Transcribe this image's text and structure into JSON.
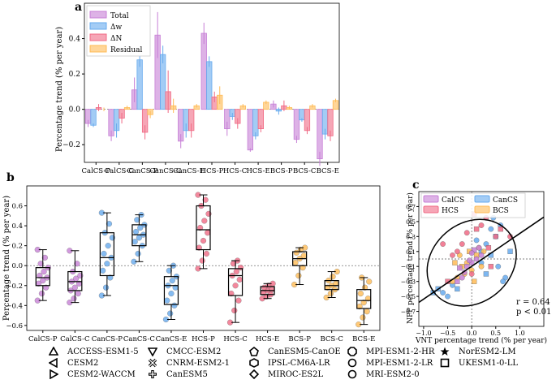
{
  "panel_labels": {
    "a": "a",
    "b": "b",
    "c": "c"
  },
  "colors": {
    "total": "#c77fd6",
    "dw": "#66aaee",
    "dn": "#f06a85",
    "res": "#ffbb55",
    "calcs": "#c77fd6",
    "cancs": "#66aaee",
    "hcs": "#f06a85",
    "bcs": "#ffbb55"
  },
  "chart_data": [
    {
      "id": "a",
      "type": "bar",
      "ylabel": "Percentage trend (% per year)",
      "ylim": [
        -0.3,
        0.6
      ],
      "yticks": [
        -0.2,
        0.0,
        0.2,
        0.4
      ],
      "ytick_labels": [
        "−0.2",
        "0.0",
        "0.2",
        "0.4"
      ],
      "categories": [
        "CalCS-P",
        "CalCS-C",
        "CanCS-P",
        "CanCS-C",
        "CanCS-E",
        "HCS-P",
        "HCS-C",
        "HCS-E",
        "BCS-P",
        "BCS-C",
        "BCS-E"
      ],
      "series": [
        {
          "name": "Total",
          "key": "total",
          "values": [
            -0.08,
            -0.15,
            0.11,
            0.42,
            -0.18,
            0.43,
            -0.11,
            -0.23,
            0.03,
            -0.17,
            -0.28
          ],
          "errors": [
            0.02,
            0.03,
            0.07,
            0.13,
            0.04,
            0.06,
            0.04,
            0.01,
            0.02,
            0.02,
            0.04
          ]
        },
        {
          "name": "Δw",
          "key": "dw",
          "values": [
            -0.09,
            -0.12,
            0.28,
            0.31,
            -0.12,
            0.27,
            -0.04,
            -0.15,
            -0.01,
            -0.06,
            -0.14
          ],
          "errors": [
            0.01,
            0.04,
            0.04,
            0.05,
            0.04,
            0.03,
            0.02,
            0.02,
            0.02,
            0.01,
            0.03
          ]
        },
        {
          "name": "ΔN",
          "key": "dn",
          "values": [
            0.01,
            -0.05,
            -0.13,
            0.1,
            -0.12,
            0.07,
            -0.08,
            -0.11,
            0.02,
            -0.12,
            -0.15
          ],
          "errors": [
            0.02,
            0.03,
            0.04,
            0.12,
            0.04,
            0.03,
            0.03,
            0.02,
            0.03,
            0.02,
            0.03
          ]
        },
        {
          "name": "Residual",
          "key": "res",
          "values": [
            0.0,
            0.01,
            -0.03,
            0.02,
            0.02,
            0.08,
            0.02,
            0.04,
            0.01,
            0.02,
            0.05
          ],
          "errors": [
            0.01,
            0.01,
            0.02,
            0.04,
            0.01,
            0.05,
            0.01,
            0.01,
            0.01,
            0.01,
            0.01
          ]
        }
      ]
    },
    {
      "id": "b",
      "type": "box",
      "ylabel": "Percentage trend (% per year)",
      "ylim": [
        -0.65,
        0.8
      ],
      "yticks": [
        -0.6,
        -0.4,
        -0.2,
        0.0,
        0.2,
        0.4,
        0.6
      ],
      "ytick_labels": [
        "−0.6",
        "−0.4",
        "−0.2",
        "0.0",
        "0.2",
        "0.4",
        "0.6"
      ],
      "categories": [
        "CalCS-P",
        "CalCS-C",
        "CanCS-P",
        "CanCS-C",
        "CanCS-E",
        "HCS-P",
        "HCS-C",
        "HCS-E",
        "BCS-P",
        "BCS-C",
        "BCS-E"
      ],
      "group_color": [
        "calcs",
        "calcs",
        "cancs",
        "cancs",
        "cancs",
        "hcs",
        "hcs",
        "hcs",
        "bcs",
        "bcs",
        "bcs"
      ],
      "boxes": [
        {
          "min": -0.35,
          "q1": -0.2,
          "median": -0.12,
          "q3": -0.02,
          "max": 0.16
        },
        {
          "min": -0.37,
          "q1": -0.25,
          "median": -0.16,
          "q3": -0.06,
          "max": 0.15
        },
        {
          "min": -0.3,
          "q1": -0.1,
          "median": 0.08,
          "q3": 0.33,
          "max": 0.53
        },
        {
          "min": 0.04,
          "q1": 0.2,
          "median": 0.31,
          "q3": 0.41,
          "max": 0.51
        },
        {
          "min": -0.54,
          "q1": -0.39,
          "median": -0.2,
          "q3": -0.11,
          "max": 0.0
        },
        {
          "min": -0.03,
          "q1": 0.16,
          "median": 0.36,
          "q3": 0.6,
          "max": 0.71
        },
        {
          "min": -0.57,
          "q1": -0.3,
          "median": -0.1,
          "q3": -0.03,
          "max": 0.05
        },
        {
          "min": -0.33,
          "q1": -0.29,
          "median": -0.25,
          "q3": -0.21,
          "max": -0.18
        },
        {
          "min": -0.19,
          "q1": 0.0,
          "median": 0.07,
          "q3": 0.14,
          "max": 0.18
        },
        {
          "min": -0.32,
          "q1": -0.24,
          "median": -0.2,
          "q3": -0.15,
          "max": -0.06
        },
        {
          "min": -0.59,
          "q1": -0.43,
          "median": -0.35,
          "q3": -0.24,
          "max": -0.12
        }
      ],
      "points": [
        [
          -0.35,
          -0.28,
          -0.22,
          -0.18,
          -0.15,
          -0.12,
          -0.1,
          -0.06,
          -0.02,
          0.02,
          0.08,
          0.16
        ],
        [
          -0.37,
          -0.33,
          -0.28,
          -0.25,
          -0.22,
          -0.18,
          -0.16,
          -0.13,
          -0.1,
          -0.06,
          0.02,
          0.15
        ],
        [
          -0.3,
          -0.22,
          -0.12,
          -0.05,
          0.02,
          0.08,
          0.12,
          0.2,
          0.28,
          0.33,
          0.42,
          0.53
        ],
        [
          0.04,
          0.12,
          0.2,
          0.24,
          0.28,
          0.31,
          0.34,
          0.38,
          0.41,
          0.46,
          0.51
        ],
        [
          -0.54,
          -0.48,
          -0.4,
          -0.35,
          -0.28,
          -0.22,
          -0.2,
          -0.15,
          -0.11,
          -0.05,
          0.0
        ],
        [
          -0.03,
          0.05,
          0.12,
          0.18,
          0.25,
          0.33,
          0.38,
          0.45,
          0.52,
          0.6,
          0.66,
          0.71
        ],
        [
          -0.57,
          -0.45,
          -0.35,
          -0.28,
          -0.2,
          -0.14,
          -0.1,
          -0.06,
          -0.02,
          0.02,
          0.05
        ],
        [
          -0.33,
          -0.31,
          -0.29,
          -0.27,
          -0.25,
          -0.24,
          -0.22,
          -0.2,
          -0.18
        ],
        [
          -0.19,
          -0.1,
          -0.02,
          0.03,
          0.07,
          0.1,
          0.13,
          0.16,
          0.18
        ],
        [
          -0.32,
          -0.28,
          -0.24,
          -0.22,
          -0.2,
          -0.18,
          -0.15,
          -0.11,
          -0.06
        ],
        [
          -0.59,
          -0.52,
          -0.46,
          -0.41,
          -0.37,
          -0.33,
          -0.28,
          -0.22,
          -0.16,
          -0.12
        ]
      ]
    },
    {
      "id": "c",
      "type": "scatter",
      "xlabel": "VNT percentage trend (% per year)",
      "ylabel": "NPP percentage trend (% per year)",
      "xlim": [
        -1.1,
        1.5
      ],
      "ylim": [
        -0.9,
        0.9
      ],
      "xticks": [
        -1.0,
        -0.5,
        0.0,
        0.5,
        1.0
      ],
      "xtick_labels": [
        "−1.0",
        "−0.5",
        "0.0",
        "0.5",
        "1.0"
      ],
      "yticks": [
        -0.7,
        -0.5,
        -0.3,
        -0.1,
        0.1,
        0.3,
        0.5,
        0.7
      ],
      "ytick_labels": [
        "−0.7",
        "−0.5",
        "−0.3",
        "−0.1",
        "0.1",
        "0.3",
        "0.5",
        "0.7"
      ],
      "legend": [
        "CalCS",
        "CanCS",
        "HCS",
        "BCS"
      ],
      "annotation": {
        "r": "r = 0.64",
        "p": "p < 0.01"
      },
      "fit_line": {
        "x": [
          -1.1,
          1.5
        ],
        "y": [
          -0.58,
          0.56
        ]
      },
      "ellipse": {
        "cx": 0.0,
        "cy": -0.05,
        "rx": 0.95,
        "ry": 0.33,
        "angle_deg": 28
      },
      "scatter": {
        "calcs": [
          [
            -0.3,
            -0.3
          ],
          [
            -0.2,
            -0.25
          ],
          [
            -0.1,
            -0.1
          ],
          [
            0.0,
            -0.05
          ],
          [
            0.1,
            0.0
          ],
          [
            -0.15,
            -0.18
          ],
          [
            0.05,
            0.12
          ],
          [
            -0.05,
            -0.02
          ],
          [
            0.2,
            0.05
          ],
          [
            -0.25,
            -0.12
          ],
          [
            0.15,
            0.15
          ],
          [
            0.0,
            0.08
          ]
        ],
        "cancs": [
          [
            -0.8,
            -0.45
          ],
          [
            -0.6,
            -0.45
          ],
          [
            -0.4,
            -0.35
          ],
          [
            -0.3,
            -0.4
          ],
          [
            0.2,
            0.1
          ],
          [
            0.3,
            0.2
          ],
          [
            0.5,
            0.3
          ],
          [
            0.4,
            0.4
          ],
          [
            0.6,
            0.45
          ],
          [
            0.8,
            0.1
          ],
          [
            0.55,
            -0.1
          ],
          [
            0.2,
            -0.05
          ],
          [
            0.4,
            0.05
          ],
          [
            0.1,
            0.25
          ],
          [
            -0.5,
            -0.5
          ],
          [
            0.3,
            -0.2
          ],
          [
            0.7,
            -0.25
          ],
          [
            0.65,
            -0.3
          ],
          [
            -0.7,
            -0.4
          ],
          [
            0.45,
            0.55
          ]
        ],
        "hcs": [
          [
            -0.5,
            -0.3
          ],
          [
            -0.3,
            0.1
          ],
          [
            -0.2,
            0.2
          ],
          [
            0.1,
            0.4
          ],
          [
            0.3,
            0.55
          ],
          [
            0.5,
            0.3
          ],
          [
            0.6,
            0.4
          ],
          [
            -0.1,
            0.35
          ],
          [
            0.2,
            0.45
          ],
          [
            0.4,
            -0.1
          ],
          [
            0.0,
            -0.2
          ],
          [
            -0.4,
            0.05
          ],
          [
            0.35,
            0.15
          ],
          [
            0.8,
            0.3
          ],
          [
            -0.6,
            0.2
          ],
          [
            0.05,
            0.6
          ]
        ],
        "bcs": [
          [
            -0.2,
            -0.1
          ],
          [
            -0.1,
            -0.05
          ],
          [
            0.0,
            -0.15
          ],
          [
            0.1,
            0.05
          ],
          [
            -0.3,
            -0.25
          ],
          [
            0.2,
            -0.1
          ],
          [
            -0.05,
            0.1
          ],
          [
            -0.15,
            -0.2
          ],
          [
            0.15,
            0.15
          ],
          [
            -0.35,
            -0.05
          ],
          [
            0.25,
            0.1
          ],
          [
            -0.4,
            -0.3
          ],
          [
            0.05,
            -0.3
          ],
          [
            -0.25,
            0.05
          ]
        ]
      }
    }
  ],
  "model_legend": [
    {
      "name": "ACCESS-ESM1-5",
      "icon": "triangle-up-icon"
    },
    {
      "name": "CESM2",
      "icon": "triangle-left-icon"
    },
    {
      "name": "CESM2-WACCM",
      "icon": "triangle-right-icon"
    },
    {
      "name": "CMCC-ESM2",
      "icon": "triangle-down-icon"
    },
    {
      "name": "CNRM-ESM2-1",
      "icon": "x-filled-icon"
    },
    {
      "name": "CanESM5",
      "icon": "plus-filled-icon"
    },
    {
      "name": "CanESM5-CanOE",
      "icon": "pentagon-icon"
    },
    {
      "name": "IPSL-CM6A-LR",
      "icon": "hexagon-icon"
    },
    {
      "name": "MIROC-ES2L",
      "icon": "diamond-icon"
    },
    {
      "name": "MPI-ESM1-2-HR",
      "icon": "octagon-icon"
    },
    {
      "name": "MPI-ESM1-2-LR",
      "icon": "circle-icon"
    },
    {
      "name": "MRI-ESM2-0",
      "icon": "circle-icon"
    },
    {
      "name": "NorESM2-LM",
      "icon": "star-icon"
    },
    {
      "name": "UKESM1-0-LL",
      "icon": "square-icon"
    }
  ]
}
